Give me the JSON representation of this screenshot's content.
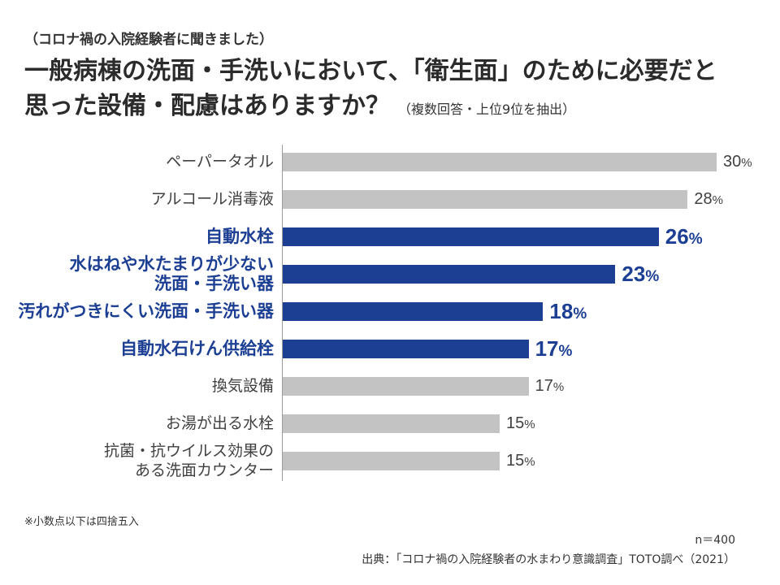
{
  "chart_data": {
    "type": "bar",
    "orientation": "horizontal",
    "subtitle": "（コロナ禍の入院経験者に聞きました）",
    "title": "一般病棟の洗面・手洗いにおいて、「衛生面」のために必要だと\n思った設備・配慮はありますか？",
    "title_note": "（複数回答・上位9位を抽出）",
    "categories": [
      "ペーパータオル",
      "アルコール消毒液",
      "自動水栓",
      "水はねや水たまりが少ない\n洗面・手洗い器",
      "汚れがつきにくい洗面・手洗い器",
      "自動水石けん供給栓",
      "換気設備",
      "お湯が出る水栓",
      "抗菌・抗ウイルス効果の\nある洗面カウンター"
    ],
    "values": [
      30,
      28,
      26,
      23,
      18,
      17,
      17,
      15,
      15
    ],
    "unit": "%",
    "highlighted": [
      false,
      false,
      true,
      true,
      true,
      true,
      false,
      false,
      false
    ],
    "xlim": [
      0,
      30
    ],
    "grid": false,
    "colors": {
      "bar": "#c3c3c3",
      "highlight": "#1c3f94"
    }
  },
  "footer": {
    "note": "※小数点以下は四捨五入",
    "sample_size": "n＝400",
    "source": "出典：「コロナ禍の入院経験者の水まわり意識調査」TOTO調べ（2021）"
  }
}
